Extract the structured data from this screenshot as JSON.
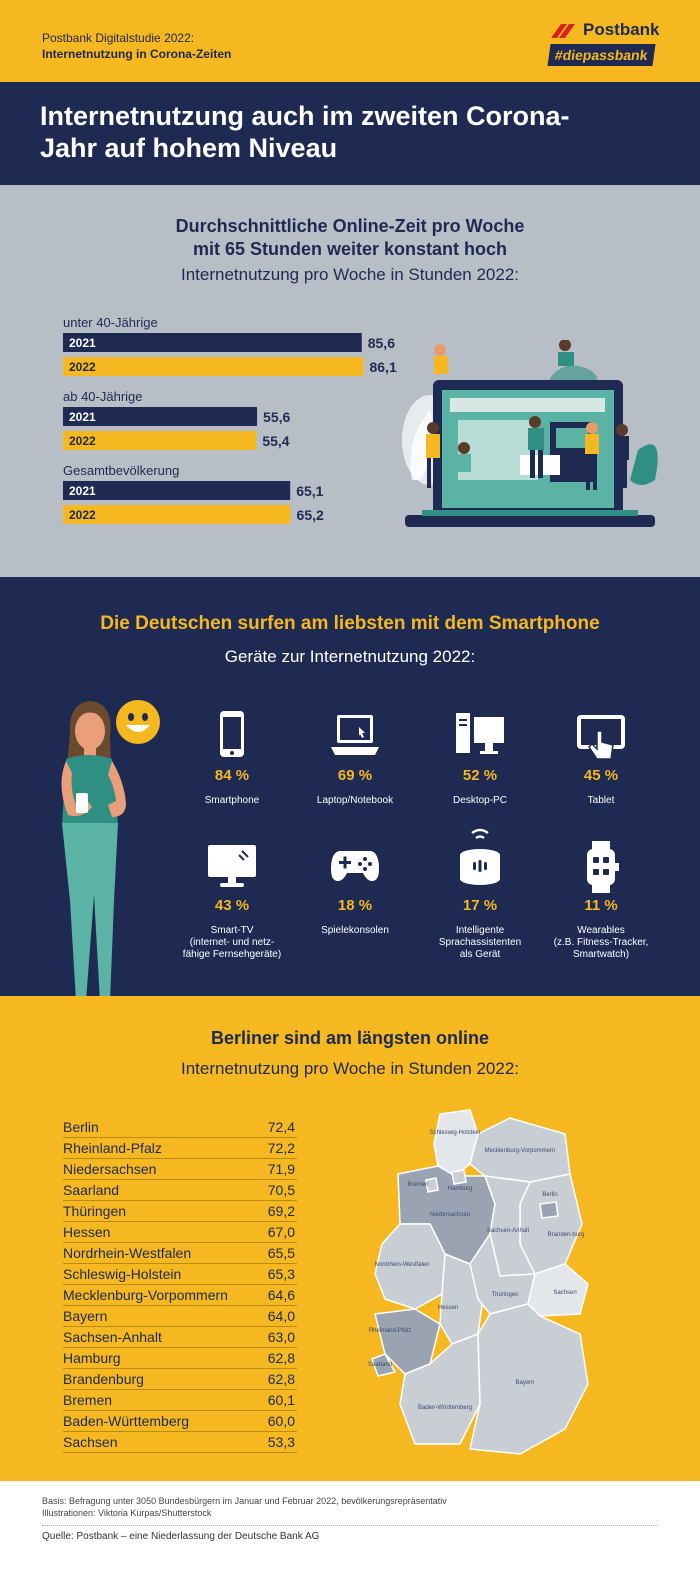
{
  "header": {
    "study_line": "Postbank Digitalstudie 2022:",
    "study_topic": "Internetnutzung in Corona-Zeiten",
    "logo_name": "Postbank",
    "logo_tag": "#diepassbank"
  },
  "headline": "Internetnutzung auch im zweiten Corona-Jahr auf hohem Niveau",
  "section1": {
    "title_line1": "Durchschnittliche Online-Zeit pro Woche",
    "title_line2": "mit 65 Stunden weiter konstant hoch",
    "subtitle": "Internetnutzung pro Woche in Stunden 2022:"
  },
  "section2": {
    "title": "Die Deutschen surfen am liebsten mit dem Smartphone",
    "subtitle": "Geräte zur Internetnutzung 2022:"
  },
  "section3": {
    "title": "Berliner sind am längsten online",
    "subtitle": "Internetnutzung pro Woche in Stunden 2022:"
  },
  "colors": {
    "navy": "#1e2a52",
    "yellow": "#f5b821",
    "grey": "#b8bec6"
  },
  "chart_data": [
    {
      "type": "bar",
      "orientation": "horizontal",
      "groups": [
        {
          "label": "unter 40-Jährige",
          "bars": [
            {
              "year": "2021",
              "value": 85.6,
              "display": "85,6"
            },
            {
              "year": "2022",
              "value": 86.1,
              "display": "86,1"
            }
          ]
        },
        {
          "label": "ab 40-Jährige",
          "bars": [
            {
              "year": "2021",
              "value": 55.6,
              "display": "55,6"
            },
            {
              "year": "2022",
              "value": 55.4,
              "display": "55,4"
            }
          ]
        },
        {
          "label": "Gesamtbevölkerung",
          "bars": [
            {
              "year": "2021",
              "value": 65.1,
              "display": "65,1"
            },
            {
              "year": "2022",
              "value": 65.2,
              "display": "65,2"
            }
          ]
        }
      ],
      "series_colors": {
        "2021": "#1e2a52",
        "2022": "#f5b821"
      }
    },
    {
      "type": "table",
      "devices": [
        {
          "name": "Smartphone",
          "pct": "84 %",
          "value": 84,
          "icon": "smartphone-icon"
        },
        {
          "name": "Laptop/Notebook",
          "pct": "69 %",
          "value": 69,
          "icon": "laptop-icon"
        },
        {
          "name": "Desktop-PC",
          "pct": "52 %",
          "value": 52,
          "icon": "desktop-icon"
        },
        {
          "name": "Tablet",
          "pct": "45 %",
          "value": 45,
          "icon": "tablet-icon"
        },
        {
          "name": "Smart-TV\n(internet- und netz-\nfähige Fernsehgeräte)",
          "pct": "43 %",
          "value": 43,
          "icon": "smart-tv-icon"
        },
        {
          "name": "Spielekonsolen",
          "pct": "18 %",
          "value": 18,
          "icon": "gamepad-icon"
        },
        {
          "name": "Intelligente\nSprachassistenten\nals Gerät",
          "pct": "17 %",
          "value": 17,
          "icon": "smart-speaker-icon"
        },
        {
          "name": "Wearables\n(z.B. Fitness-Tracker,\nSmartwatch)",
          "pct": "11 %",
          "value": 11,
          "icon": "smartwatch-icon"
        }
      ]
    },
    {
      "type": "table",
      "states": [
        {
          "name": "Berlin",
          "value": "72,4"
        },
        {
          "name": "Rheinland-Pfalz",
          "value": "72,2"
        },
        {
          "name": "Niedersachsen",
          "value": "71,9"
        },
        {
          "name": "Saarland",
          "value": "70,5"
        },
        {
          "name": "Thüringen",
          "value": "69,2"
        },
        {
          "name": "Hessen",
          "value": "67,0"
        },
        {
          "name": "Nordrhein-Westfalen",
          "value": "65,5"
        },
        {
          "name": "Schleswig-Holstein",
          "value": "65,3"
        },
        {
          "name": "Mecklenburg-Vorpommern",
          "value": "64,6"
        },
        {
          "name": "Bayern",
          "value": "64,0"
        },
        {
          "name": "Sachsen-Anhalt",
          "value": "63,0"
        },
        {
          "name": "Hamburg",
          "value": "62,8"
        },
        {
          "name": "Brandenburg",
          "value": "62,8"
        },
        {
          "name": "Bremen",
          "value": "60,1"
        },
        {
          "name": "Baden-Württemberg",
          "value": "60,0"
        },
        {
          "name": "Sachsen",
          "value": "53,3"
        }
      ]
    }
  ],
  "map_labels": {
    "sh": "Schleswig-Holstein",
    "mv": "Mecklenburg-Vorpommern",
    "hb": "Bremen",
    "hh": "Hamburg",
    "ni": "Niedersachsen",
    "be": "Berlin",
    "bb": "Branden-burg",
    "st": "Sachsen-Anhalt",
    "nw": "Nordrhein-Westfalen",
    "sn": "Sachsen",
    "he": "Hessen",
    "th": "Thüringen",
    "rp": "Rheinland-Pfalz",
    "sl": "Saarland",
    "by": "Bayern",
    "bw": "Baden-Württemberg"
  },
  "footer": {
    "basis": "Basis: Befragung unter 3050 Bundesbürgern im Januar und Februar 2022, bevölkerungsrepräsentativ",
    "credits": "Illustrationen: Viktoria Kurpas/Shutterstock",
    "source": "Quelle: Postbank – eine Niederlassung der Deutsche Bank AG"
  }
}
